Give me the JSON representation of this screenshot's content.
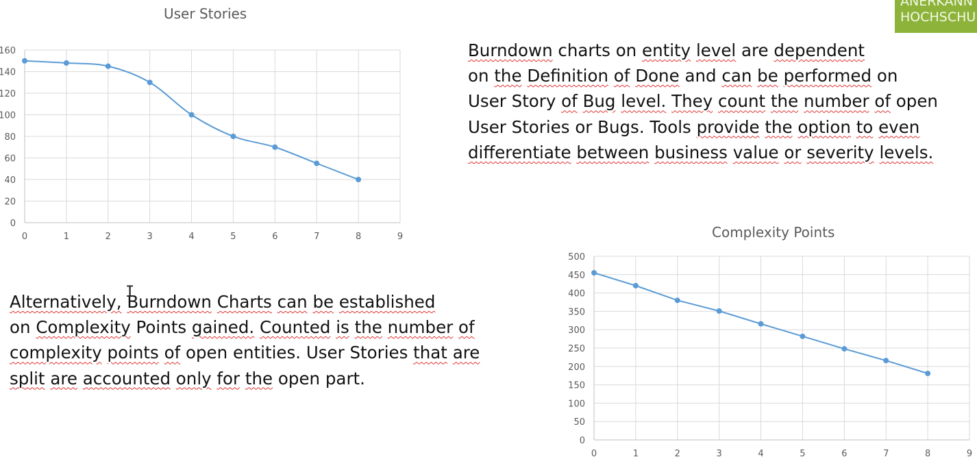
{
  "badge": {
    "line1": "ANERKANN",
    "line2": "HOCHSCHU",
    "color": "#8db33a"
  },
  "paragraph_right": {
    "lines": [
      "Burndown charts on entity level are dependent",
      "on the Definition of Done and can be performed on",
      "User Story of Bug level. They count the number of open",
      "User Stories or Bugs. Tools provide the option to even",
      "differentiate between business value or severity levels."
    ]
  },
  "paragraph_left": {
    "lines": [
      "Alternatively, Burndown Charts can be established",
      "on Complexity Points gained. Counted is the number of",
      "complexity points of open entities. User Stories that are",
      "split are accounted only for the open part."
    ]
  },
  "chart_data": [
    {
      "type": "line",
      "title": "User Stories",
      "x": [
        0,
        1,
        2,
        3,
        4,
        5,
        6,
        7,
        8
      ],
      "series": [
        {
          "values": [
            150,
            148,
            145,
            130,
            100,
            80,
            70,
            55,
            40
          ]
        }
      ],
      "xlim": [
        0,
        9
      ],
      "ylim": [
        0,
        160
      ],
      "xticks": [
        "0",
        "1",
        "2",
        "3",
        "4",
        "5",
        "6",
        "7",
        "8",
        "9"
      ],
      "yticks": [
        "0",
        "20",
        "40",
        "60",
        "80",
        "100",
        "120",
        "140",
        "160"
      ],
      "smooth": true,
      "grid": true,
      "color": "#5b9bd5"
    },
    {
      "type": "line",
      "title": "Complexity Points",
      "x": [
        0,
        1,
        2,
        3,
        4,
        5,
        6,
        7,
        8
      ],
      "series": [
        {
          "values": [
            455,
            420,
            380,
            351,
            316,
            282,
            248,
            216,
            181
          ]
        }
      ],
      "xlim": [
        0,
        9
      ],
      "ylim": [
        0,
        500
      ],
      "xticks": [
        "0",
        "1",
        "2",
        "3",
        "4",
        "5",
        "6",
        "7",
        "8",
        "9"
      ],
      "yticks": [
        "0",
        "50",
        "100",
        "150",
        "200",
        "250",
        "300",
        "350",
        "400",
        "450",
        "500"
      ],
      "smooth": false,
      "grid": true,
      "color": "#5b9bd5"
    }
  ]
}
